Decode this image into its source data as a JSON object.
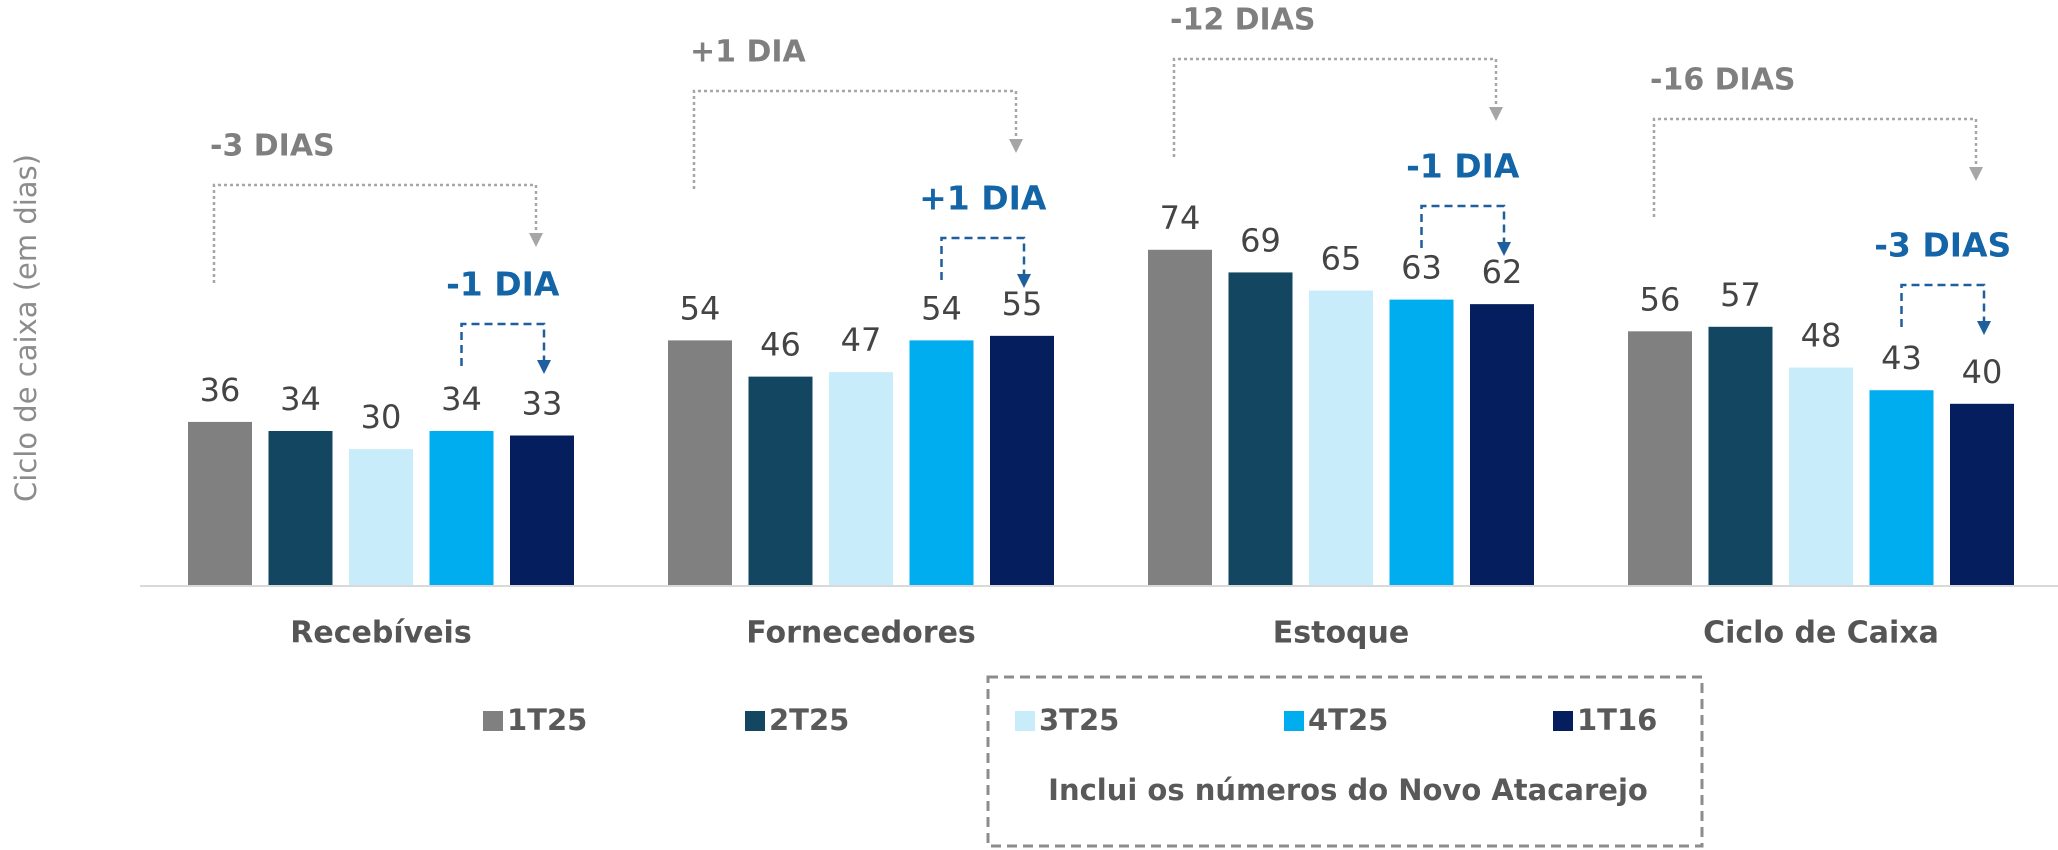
{
  "chart_data": {
    "type": "bar",
    "y_label": "Ciclo de caixa (em dias)",
    "categories": [
      "Recebíveis",
      "Fornecedores",
      "Estoque",
      "Ciclo de Caixa"
    ],
    "series": [
      {
        "name": "1T25",
        "color": "#808080",
        "values": [
          36,
          54,
          74,
          56
        ]
      },
      {
        "name": "2T25",
        "color": "#134660",
        "values": [
          34,
          46,
          69,
          57
        ]
      },
      {
        "name": "3T25",
        "color": "#c9ecfa",
        "values": [
          30,
          47,
          65,
          48
        ]
      },
      {
        "name": "4T25",
        "color": "#00aeef",
        "values": [
          34,
          54,
          63,
          43
        ]
      },
      {
        "name": "1T16",
        "color": "#041e5e",
        "values": [
          33,
          55,
          62,
          40
        ]
      }
    ],
    "annotations": [
      {
        "total": "-3 DIAS",
        "quarter": "-1 DIA"
      },
      {
        "total": "+1 DIA",
        "quarter": "+1 DIA"
      },
      {
        "total": "-12 DIAS",
        "quarter": "-1 DIA"
      },
      {
        "total": "-16 DIAS",
        "quarter": "-3 DIAS"
      }
    ],
    "note": "Inclui os números do Novo Atacarejo"
  }
}
